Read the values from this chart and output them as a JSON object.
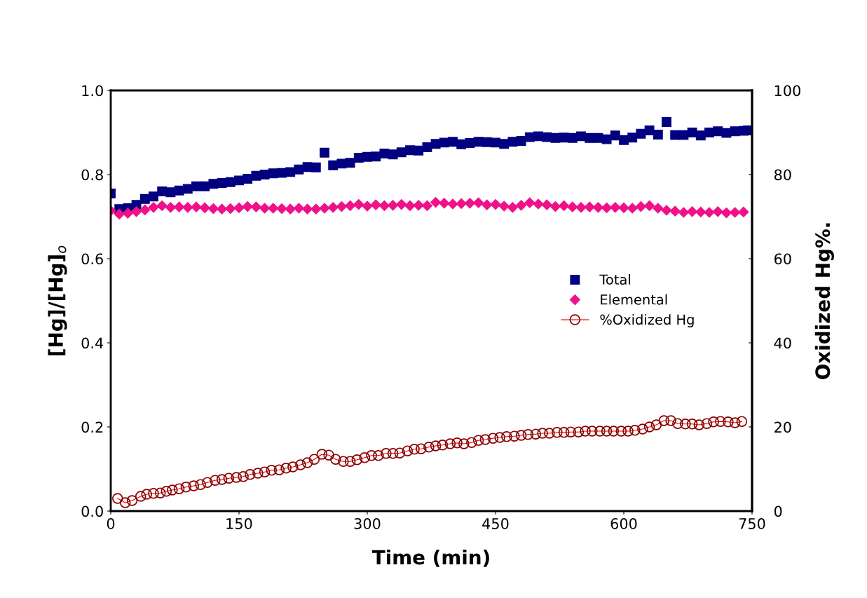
{
  "chart_data": {
    "type": "scatter",
    "xlabel": "Time (min)",
    "ylabel": "[Hg]/[Hg]$_{o}$",
    "y2label": "Oxidized Hg%.",
    "xlim": [
      0,
      750
    ],
    "xticks": [
      0,
      150,
      300,
      450,
      600,
      750
    ],
    "ylim": [
      0,
      1
    ],
    "yticks": [
      {
        "value": 0,
        "label": "0.0"
      },
      {
        "value": 0.2,
        "label": "0.2"
      },
      {
        "value": 0.4,
        "label": "0.4"
      },
      {
        "value": 0.6,
        "label": "0.6"
      },
      {
        "value": 0.8,
        "label": "0.8"
      },
      {
        "value": 1,
        "label": "1.0"
      }
    ],
    "y2lim": [
      0,
      100
    ],
    "y2ticks": [
      0,
      20,
      40,
      60,
      80,
      100
    ],
    "grid": false,
    "legend": "right",
    "series": [
      {
        "name": "Total",
        "marker": "square",
        "color": "#000080",
        "x": [
          0,
          10,
          20,
          30,
          40,
          50,
          60,
          70,
          80,
          90,
          100,
          110,
          120,
          130,
          140,
          150,
          160,
          170,
          180,
          190,
          200,
          210,
          220,
          230,
          240,
          250,
          260,
          270,
          280,
          290,
          300,
          310,
          320,
          330,
          340,
          350,
          360,
          370,
          380,
          390,
          400,
          410,
          420,
          430,
          440,
          450,
          460,
          470,
          480,
          490,
          500,
          510,
          520,
          530,
          540,
          550,
          560,
          570,
          580,
          590,
          600,
          610,
          620,
          630,
          640,
          650,
          660,
          670,
          680,
          690,
          700,
          710,
          720,
          730,
          740,
          745
        ],
        "values": [
          0.755,
          0.718,
          0.72,
          0.728,
          0.742,
          0.748,
          0.76,
          0.758,
          0.762,
          0.766,
          0.772,
          0.772,
          0.778,
          0.78,
          0.782,
          0.786,
          0.79,
          0.797,
          0.8,
          0.803,
          0.804,
          0.806,
          0.812,
          0.818,
          0.817,
          0.852,
          0.822,
          0.826,
          0.828,
          0.84,
          0.842,
          0.843,
          0.85,
          0.848,
          0.853,
          0.858,
          0.857,
          0.865,
          0.873,
          0.876,
          0.878,
          0.872,
          0.875,
          0.878,
          0.877,
          0.876,
          0.873,
          0.878,
          0.88,
          0.889,
          0.891,
          0.889,
          0.887,
          0.888,
          0.887,
          0.891,
          0.887,
          0.887,
          0.884,
          0.893,
          0.882,
          0.888,
          0.897,
          0.905,
          0.895,
          0.925,
          0.894,
          0.894,
          0.9,
          0.893,
          0.9,
          0.903,
          0.899,
          0.903,
          0.904,
          0.905
        ]
      },
      {
        "name": "Elemental",
        "marker": "diamond",
        "color": "#f0118a",
        "x": [
          0,
          10,
          20,
          30,
          40,
          50,
          60,
          70,
          80,
          90,
          100,
          110,
          120,
          130,
          140,
          150,
          160,
          170,
          180,
          190,
          200,
          210,
          220,
          230,
          240,
          250,
          260,
          270,
          280,
          290,
          300,
          310,
          320,
          330,
          340,
          350,
          360,
          370,
          380,
          390,
          400,
          410,
          420,
          430,
          440,
          450,
          460,
          470,
          480,
          490,
          500,
          510,
          520,
          530,
          540,
          550,
          560,
          570,
          580,
          590,
          600,
          610,
          620,
          630,
          640,
          650,
          660,
          670,
          680,
          690,
          700,
          710,
          720,
          730,
          740
        ],
        "values": [
          0.714,
          0.706,
          0.708,
          0.712,
          0.716,
          0.722,
          0.726,
          0.722,
          0.723,
          0.722,
          0.723,
          0.721,
          0.719,
          0.718,
          0.719,
          0.721,
          0.724,
          0.723,
          0.72,
          0.72,
          0.719,
          0.718,
          0.72,
          0.718,
          0.718,
          0.72,
          0.722,
          0.724,
          0.726,
          0.729,
          0.725,
          0.728,
          0.726,
          0.727,
          0.729,
          0.726,
          0.727,
          0.726,
          0.734,
          0.732,
          0.73,
          0.731,
          0.732,
          0.733,
          0.728,
          0.729,
          0.725,
          0.722,
          0.727,
          0.733,
          0.73,
          0.728,
          0.724,
          0.726,
          0.723,
          0.722,
          0.723,
          0.722,
          0.721,
          0.722,
          0.721,
          0.72,
          0.724,
          0.726,
          0.72,
          0.715,
          0.713,
          0.71,
          0.712,
          0.711,
          0.71,
          0.712,
          0.709,
          0.71,
          0.711
        ]
      },
      {
        "name": "%Oxidized Hg",
        "type": "line",
        "axis": "y2",
        "marker": "circle",
        "color": "#8b0000",
        "x": [
          8,
          17,
          25,
          35,
          42,
          50,
          58,
          65,
          72,
          80,
          88,
          97,
          105,
          113,
          122,
          130,
          138,
          147,
          155,
          163,
          172,
          180,
          188,
          197,
          205,
          213,
          222,
          230,
          238,
          247,
          255,
          263,
          272,
          280,
          288,
          297,
          305,
          313,
          322,
          330,
          338,
          347,
          355,
          363,
          372,
          380,
          388,
          397,
          405,
          413,
          422,
          430,
          438,
          447,
          455,
          463,
          472,
          480,
          488,
          497,
          505,
          513,
          522,
          530,
          538,
          547,
          555,
          563,
          572,
          580,
          588,
          597,
          605,
          613,
          622,
          630,
          638,
          647,
          655,
          663,
          672,
          680,
          688,
          697,
          705,
          713,
          722,
          730,
          738
        ],
        "values": [
          3.0,
          2.0,
          2.5,
          3.5,
          4.0,
          4.2,
          4.3,
          4.7,
          5.0,
          5.3,
          5.7,
          6.0,
          6.3,
          6.8,
          7.3,
          7.5,
          7.8,
          8.0,
          8.2,
          8.7,
          9.0,
          9.3,
          9.7,
          9.8,
          10.2,
          10.5,
          11.0,
          11.5,
          12.3,
          13.5,
          13.3,
          12.3,
          11.8,
          11.8,
          12.2,
          12.7,
          13.2,
          13.2,
          13.7,
          13.7,
          13.8,
          14.3,
          14.7,
          14.8,
          15.2,
          15.5,
          15.7,
          16.0,
          16.2,
          16.0,
          16.3,
          16.8,
          17.0,
          17.3,
          17.5,
          17.7,
          17.8,
          18.0,
          18.2,
          18.3,
          18.5,
          18.5,
          18.7,
          18.7,
          18.8,
          18.8,
          19.0,
          19.0,
          19.0,
          19.0,
          19.0,
          19.0,
          19.0,
          19.2,
          19.5,
          20.0,
          20.5,
          21.5,
          21.5,
          20.8,
          20.7,
          20.7,
          20.5,
          20.8,
          21.2,
          21.3,
          21.2,
          21.0,
          21.3
        ]
      }
    ]
  }
}
